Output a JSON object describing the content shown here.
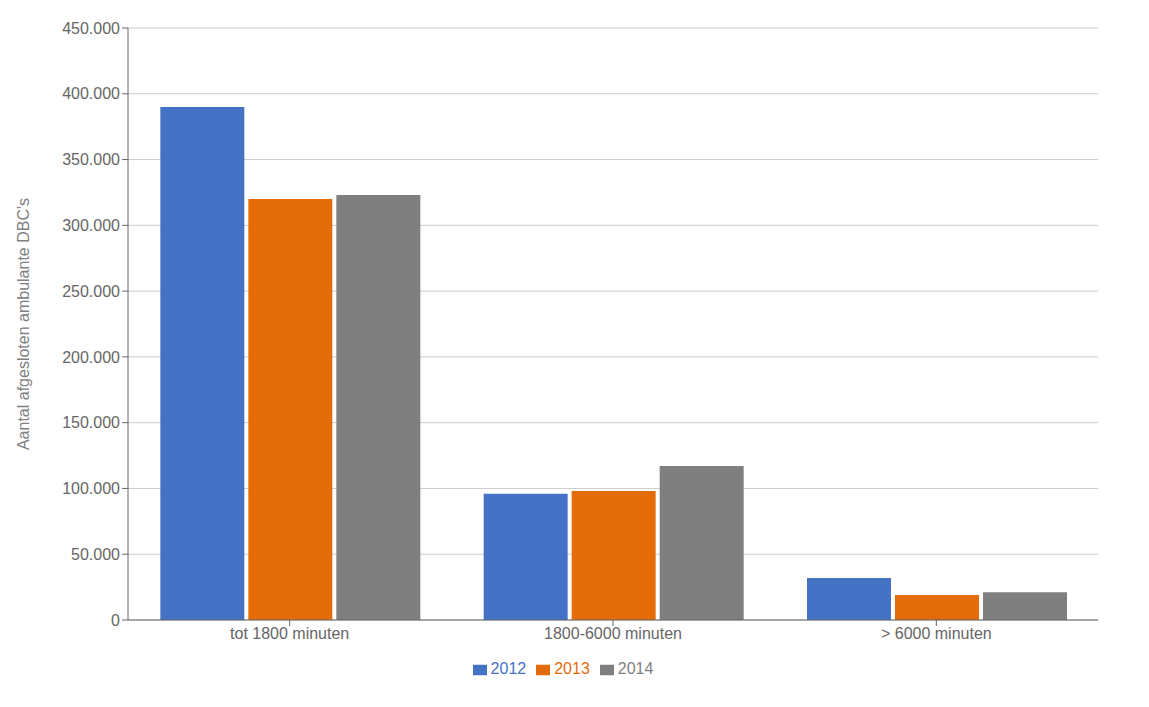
{
  "chart_data": {
    "type": "bar",
    "ylabel": "Aantal afgesloten ambulante DBC's",
    "categories": [
      "tot 1800 minuten",
      "1800-6000 minuten",
      "> 6000 minuten"
    ],
    "series": [
      {
        "name": "2012",
        "color": "#4472C4",
        "values": [
          390000,
          96000,
          32000
        ]
      },
      {
        "name": "2013",
        "color": "#E36C09",
        "values": [
          320000,
          98000,
          19000
        ]
      },
      {
        "name": "2014",
        "color": "#7F7F7F",
        "values": [
          323000,
          117000,
          21000
        ]
      }
    ],
    "ylim": [
      0,
      450000
    ],
    "yticks": [
      0,
      {
        "value": 50000,
        "label": "50.000"
      },
      {
        "value": 100000,
        "label": "100.000"
      },
      {
        "value": 150000,
        "label": "150.000"
      },
      {
        "value": 200000,
        "label": "200.000"
      },
      {
        "value": 250000,
        "label": "250.000"
      },
      {
        "value": 300000,
        "label": "300.000"
      },
      {
        "value": 350000,
        "label": "350.000"
      },
      {
        "value": 400000,
        "label": "400.000"
      },
      {
        "value": 450000,
        "label": "450.000"
      }
    ],
    "grid": true,
    "legend": "bottom"
  }
}
